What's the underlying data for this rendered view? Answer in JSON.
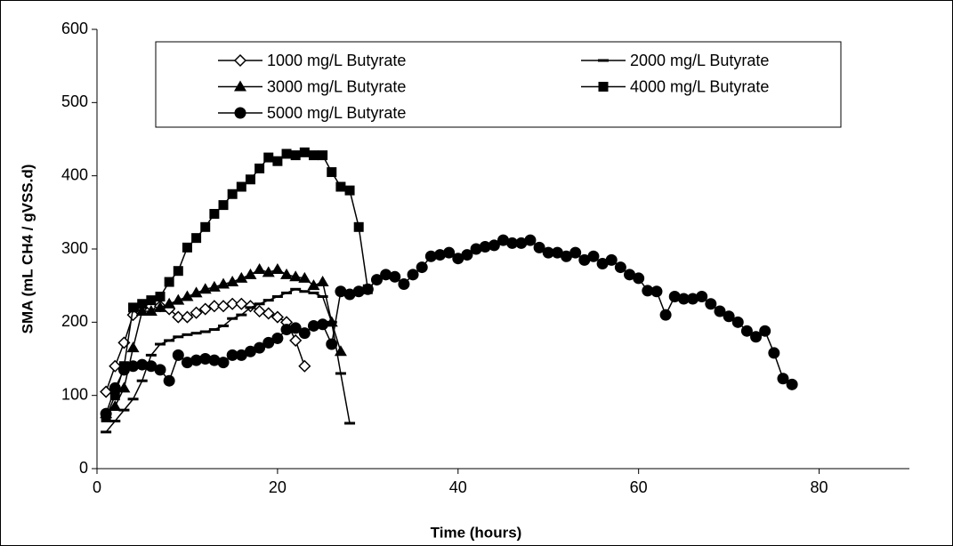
{
  "chart_data": {
    "type": "line",
    "xlabel": "Time (hours)",
    "ylabel": "SMA (mL CH4 / gVSS.d)",
    "xlim": [
      0,
      90
    ],
    "xticks": [
      0,
      20,
      40,
      60,
      80
    ],
    "ylim": [
      0,
      600
    ],
    "yticks": [
      0,
      100,
      200,
      300,
      400,
      500,
      600
    ],
    "legend": "upper center",
    "series": [
      {
        "name": "1000 mg/L Butyrate",
        "color": "#000000",
        "marker": "diamond-open",
        "x": [
          1,
          2,
          3,
          4,
          5,
          6,
          7,
          8,
          9,
          10,
          11,
          12,
          13,
          14,
          15,
          16,
          17,
          18,
          19,
          20,
          21,
          22,
          23
        ],
        "values": [
          105,
          140,
          172,
          210,
          220,
          222,
          222,
          218,
          207,
          207,
          213,
          218,
          222,
          222,
          225,
          225,
          222,
          215,
          212,
          207,
          200,
          175,
          140
        ]
      },
      {
        "name": "2000 mg/L Butyrate",
        "color": "#000000",
        "marker": "dash",
        "x": [
          1,
          2,
          3,
          4,
          5,
          6,
          7,
          8,
          9,
          10,
          11,
          12,
          13,
          14,
          15,
          16,
          17,
          18,
          19,
          20,
          21,
          22,
          23,
          24,
          25,
          26,
          27,
          28
        ],
        "values": [
          50,
          65,
          80,
          95,
          120,
          155,
          170,
          175,
          180,
          183,
          185,
          187,
          190,
          195,
          205,
          210,
          220,
          225,
          230,
          235,
          240,
          245,
          242,
          240,
          235,
          200,
          130,
          62
        ]
      },
      {
        "name": "3000 mg/L Butyrate",
        "color": "#000000",
        "marker": "triangle",
        "x": [
          1,
          2,
          3,
          4,
          5,
          6,
          7,
          8,
          9,
          10,
          11,
          12,
          13,
          14,
          15,
          16,
          17,
          18,
          19,
          20,
          21,
          22,
          23,
          24,
          25,
          26,
          27
        ],
        "values": [
          75,
          85,
          110,
          165,
          215,
          215,
          220,
          225,
          230,
          235,
          240,
          245,
          248,
          252,
          255,
          260,
          265,
          272,
          268,
          272,
          265,
          262,
          260,
          250,
          255,
          200,
          160
        ]
      },
      {
        "name": "4000 mg/L Butyrate",
        "color": "#000000",
        "marker": "square",
        "x": [
          1,
          2,
          3,
          4,
          5,
          6,
          7,
          8,
          9,
          10,
          11,
          12,
          13,
          14,
          15,
          16,
          17,
          18,
          19,
          20,
          21,
          22,
          23,
          24,
          25,
          26,
          27,
          28,
          29,
          30
        ],
        "values": [
          70,
          100,
          140,
          220,
          225,
          230,
          235,
          255,
          270,
          302,
          315,
          330,
          348,
          360,
          375,
          385,
          395,
          410,
          425,
          420,
          430,
          428,
          432,
          428,
          428,
          405,
          385,
          380,
          330,
          245
        ]
      },
      {
        "name": "5000 mg/L Butyrate",
        "color": "#000000",
        "marker": "circle",
        "x": [
          1,
          2,
          3,
          4,
          5,
          6,
          7,
          8,
          9,
          10,
          11,
          12,
          13,
          14,
          15,
          16,
          17,
          18,
          19,
          20,
          21,
          22,
          23,
          24,
          25,
          26,
          27,
          28,
          29,
          30,
          31,
          32,
          33,
          34,
          35,
          36,
          37,
          38,
          39,
          40,
          41,
          42,
          43,
          44,
          45,
          46,
          47,
          48,
          49,
          50,
          51,
          52,
          53,
          54,
          55,
          56,
          57,
          58,
          59,
          60,
          61,
          62,
          63,
          64,
          65,
          66,
          67,
          68,
          69,
          70,
          71,
          72,
          73,
          74,
          75,
          76,
          77
        ],
        "values": [
          75,
          110,
          135,
          140,
          142,
          140,
          135,
          120,
          155,
          145,
          148,
          150,
          148,
          145,
          155,
          155,
          160,
          165,
          172,
          178,
          190,
          192,
          185,
          195,
          197,
          170,
          242,
          238,
          242,
          245,
          258,
          265,
          262,
          252,
          265,
          275,
          290,
          292,
          295,
          287,
          292,
          300,
          303,
          305,
          312,
          308,
          308,
          312,
          302,
          295,
          295,
          290,
          295,
          285,
          290,
          280,
          285,
          275,
          265,
          260,
          243,
          242,
          210,
          235,
          232,
          232,
          235,
          225,
          215,
          208,
          200,
          188,
          180,
          188,
          158,
          123,
          115
        ]
      }
    ]
  }
}
